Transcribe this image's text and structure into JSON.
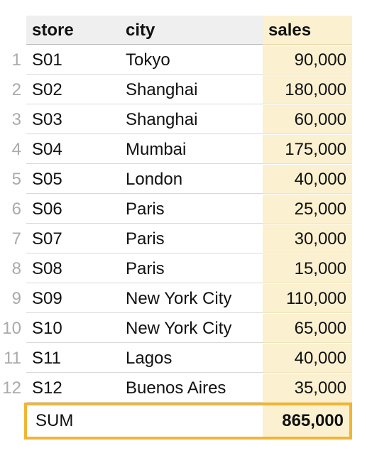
{
  "headers": {
    "store": "store",
    "city": "city",
    "sales": "sales"
  },
  "rows": [
    {
      "num": "1",
      "store": "S01",
      "city": "Tokyo",
      "sales": "90,000"
    },
    {
      "num": "2",
      "store": "S02",
      "city": "Shanghai",
      "sales": "180,000"
    },
    {
      "num": "3",
      "store": "S03",
      "city": "Shanghai",
      "sales": "60,000"
    },
    {
      "num": "4",
      "store": "S04",
      "city": "Mumbai",
      "sales": "175,000"
    },
    {
      "num": "5",
      "store": "S05",
      "city": "London",
      "sales": "40,000"
    },
    {
      "num": "6",
      "store": "S06",
      "city": "Paris",
      "sales": "25,000"
    },
    {
      "num": "7",
      "store": "S07",
      "city": "Paris",
      "sales": "30,000"
    },
    {
      "num": "8",
      "store": "S08",
      "city": "Paris",
      "sales": "15,000"
    },
    {
      "num": "9",
      "store": "S09",
      "city": "New York City",
      "sales": "110,000"
    },
    {
      "num": "10",
      "store": "S10",
      "city": "New York City",
      "sales": "65,000"
    },
    {
      "num": "11",
      "store": "S11",
      "city": "Lagos",
      "sales": "40,000"
    },
    {
      "num": "12",
      "store": "S12",
      "city": "Buenos Aires",
      "sales": "35,000"
    }
  ],
  "summary": {
    "label": "SUM",
    "value": "865,000"
  },
  "colors": {
    "sales_column_fill": "#fbf0cf",
    "header_fill": "#efefef",
    "sum_border": "#f2b433",
    "row_number": "#aaaaaa"
  }
}
